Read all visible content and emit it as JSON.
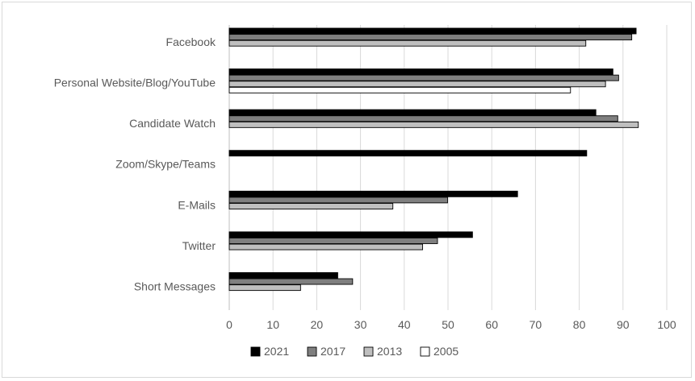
{
  "chart_data": {
    "type": "bar",
    "orientation": "horizontal",
    "title": "",
    "xlabel": "",
    "ylabel": "",
    "categories": [
      "Facebook",
      "Personal Website/Blog/YouTube",
      "Candidate Watch",
      "Zoom/Skype/Teams",
      "E-Mails",
      "Twitter",
      "Short Messages"
    ],
    "series": [
      {
        "name": "2021",
        "color": "#000000",
        "values": [
          93,
          87.7,
          83.8,
          81.7,
          65.9,
          55.6,
          24.8
        ]
      },
      {
        "name": "2017",
        "color": "#7f7f7f",
        "values": [
          92,
          89,
          88.8,
          null,
          49.9,
          47.6,
          28.2
        ]
      },
      {
        "name": "2013",
        "color": "#bfbfbf",
        "values": [
          81.5,
          86,
          93.5,
          null,
          37.4,
          44.2,
          16.3
        ]
      },
      {
        "name": "2005",
        "color": "#ffffff",
        "values": [
          null,
          78,
          null,
          null,
          null,
          null,
          null
        ]
      }
    ],
    "xlim": [
      0,
      100
    ],
    "xticks": [
      0,
      10,
      20,
      30,
      40,
      50,
      60,
      70,
      80,
      90,
      100
    ],
    "grid": "vertical",
    "legend": "bottom"
  }
}
